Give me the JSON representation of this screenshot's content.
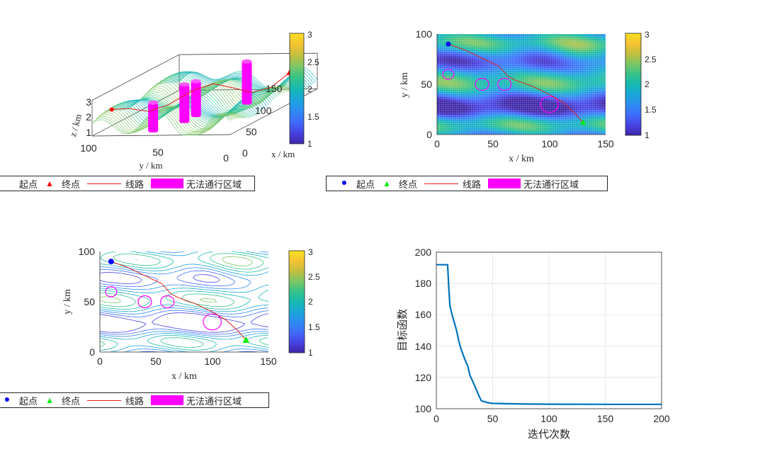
{
  "colors": {
    "route": "#e0201b",
    "start": "#0000ff",
    "end_3d": "#ff0000",
    "end_2d": "#00ee00",
    "noentry": "#ff00ff",
    "convergence": "#0072bd"
  },
  "colormap": [
    "#3e26a8",
    "#4743e3",
    "#3f6cfb",
    "#2d8cf1",
    "#1aa7d9",
    "#17b9b1",
    "#35c388",
    "#7cc665",
    "#c2bf3e",
    "#f5c233",
    "#f9e11f"
  ],
  "legend": {
    "start": "起点",
    "end": "终点",
    "route": "线路",
    "noentry": "无法通行区域"
  },
  "plots": {
    "surface3d": {
      "type": "surface",
      "xlabel": "x / km",
      "ylabel": "y / km",
      "zlabel": "z / km",
      "x_ticks": [
        "0",
        "50",
        "100",
        "150"
      ],
      "y_ticks": [
        "100",
        "50",
        "0"
      ],
      "z_ticks": [
        "1",
        "2",
        "3"
      ],
      "colorbar_ticks": [
        "1",
        "1.5",
        "2",
        "2.5",
        "3"
      ]
    },
    "heatmap": {
      "type": "heatmap",
      "xlabel": "x / km",
      "ylabel": "y / km",
      "xlim": [
        0,
        150
      ],
      "ylim": [
        0,
        100
      ],
      "x_ticks": [
        "0",
        "50",
        "100",
        "150"
      ],
      "y_ticks": [
        "0",
        "50",
        "100"
      ],
      "colorbar_ticks": [
        "1",
        "1.5",
        "2",
        "2.5",
        "3"
      ]
    },
    "contour": {
      "type": "contour",
      "xlabel": "x / km",
      "ylabel": "y / km",
      "xlim": [
        0,
        150
      ],
      "ylim": [
        0,
        100
      ],
      "x_ticks": [
        "0",
        "50",
        "100",
        "150"
      ],
      "y_ticks": [
        "0",
        "50",
        "100"
      ],
      "colorbar_ticks": [
        "1",
        "1.5",
        "2",
        "2.5",
        "3"
      ]
    },
    "convergence": {
      "type": "line",
      "xlabel": "迭代次数",
      "ylabel": "目标函数",
      "xlim": [
        0,
        200
      ],
      "ylim": [
        100,
        200
      ],
      "x_ticks": [
        "0",
        "50",
        "100",
        "150",
        "200"
      ],
      "y_ticks": [
        "100",
        "120",
        "140",
        "160",
        "180",
        "200"
      ]
    }
  },
  "chart_data": [
    {
      "type": "heatmap",
      "title": "",
      "xlabel": "x / km",
      "ylabel": "y / km",
      "xlim": [
        0,
        150
      ],
      "ylim": [
        0,
        100
      ],
      "start": [
        10,
        90
      ],
      "end": [
        130,
        12
      ],
      "route": [
        [
          10,
          90
        ],
        [
          25,
          84
        ],
        [
          40,
          76
        ],
        [
          55,
          68
        ],
        [
          60,
          62
        ],
        [
          63,
          58
        ],
        [
          70,
          54
        ],
        [
          85,
          48
        ],
        [
          100,
          40
        ],
        [
          112,
          32
        ],
        [
          122,
          22
        ],
        [
          130,
          12
        ]
      ],
      "obstacles": [
        {
          "x": 10,
          "y": 60,
          "r": 5
        },
        {
          "x": 40,
          "y": 50,
          "r": 6
        },
        {
          "x": 60,
          "y": 50,
          "r": 6
        },
        {
          "x": 100,
          "y": 30,
          "r": 8
        }
      ]
    },
    {
      "type": "line",
      "title": "",
      "xlabel": "迭代次数",
      "ylabel": "目标函数",
      "xlim": [
        0,
        200
      ],
      "ylim": [
        100,
        200
      ],
      "x": [
        0,
        5,
        10,
        11,
        12,
        14,
        16,
        18,
        20,
        22,
        25,
        28,
        30,
        32,
        35,
        38,
        40,
        43,
        45,
        48,
        50,
        60,
        80,
        100,
        150,
        200
      ],
      "values": [
        192,
        192,
        192,
        178,
        166,
        160,
        155,
        150,
        143,
        138,
        132,
        127,
        121,
        118,
        113,
        108,
        105,
        104.5,
        104,
        103.6,
        103.4,
        103.2,
        103,
        102.9,
        102.8,
        102.8
      ]
    }
  ]
}
